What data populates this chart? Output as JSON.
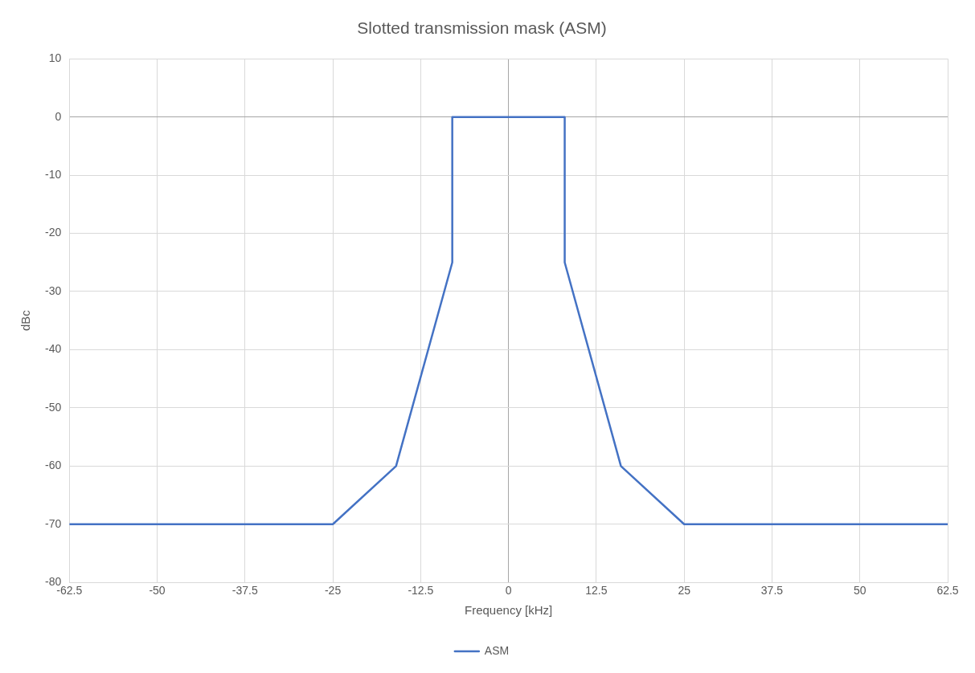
{
  "chart_data": {
    "type": "line",
    "title": "Slotted transmission mask (ASM)",
    "xlabel": "Frequency [kHz]",
    "ylabel": "dBc",
    "series": [
      {
        "name": "ASM",
        "color": "#4472c4",
        "x": [
          -62.5,
          -25,
          -16,
          -8,
          -8,
          8,
          8,
          16,
          25,
          62.5
        ],
        "values": [
          -70,
          -70,
          -60,
          -25,
          0,
          0,
          -25,
          -60,
          -70,
          -70
        ]
      }
    ],
    "xlim": [
      -62.5,
      62.5
    ],
    "xticks": [
      -62.5,
      -50,
      -37.5,
      -25,
      -12.5,
      0,
      12.5,
      25,
      37.5,
      50,
      62.5
    ],
    "ylim": [
      -80,
      10
    ],
    "yticks": [
      -80,
      -70,
      -60,
      -50,
      -40,
      -30,
      -20,
      -10,
      0,
      10
    ],
    "grid": true,
    "legend": "bottom",
    "marker": "none",
    "line_style": "solid"
  }
}
